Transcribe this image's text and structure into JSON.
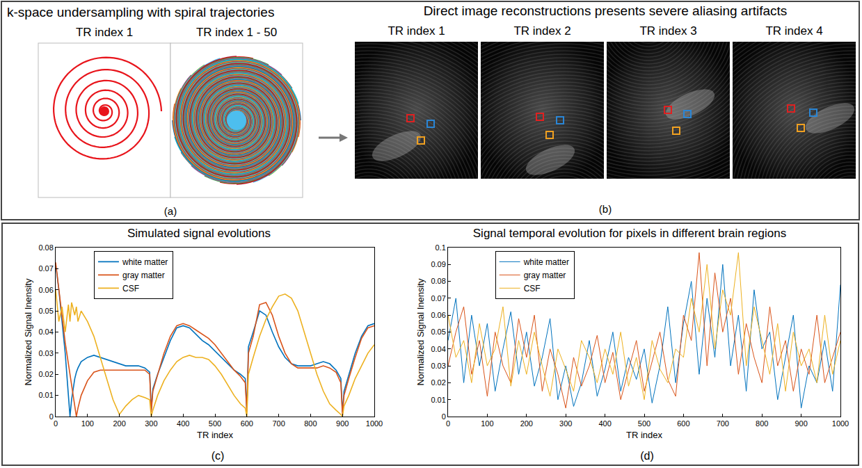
{
  "figure": {
    "a": {
      "title": "k-space undersampling with spiral trajectories",
      "labels": [
        "TR index 1",
        "TR index 1 - 50"
      ],
      "letter": "(a)"
    },
    "b": {
      "title": "Direct image reconstructions presents severe aliasing artifacts",
      "labels": [
        "TR index 1",
        "TR index 2",
        "TR index 3",
        "TR index 4"
      ],
      "letter": "(b)"
    }
  },
  "chart_data": [
    {
      "type": "line",
      "title": "Simulated signal evolutions",
      "xlabel": "TR index",
      "ylabel": "Normalized Signal Inensity",
      "x": [
        0,
        10,
        20,
        30,
        40,
        45,
        50,
        60,
        65,
        70,
        80,
        100,
        120,
        140,
        160,
        180,
        200,
        220,
        240,
        260,
        280,
        295,
        300,
        305,
        320,
        340,
        360,
        380,
        400,
        420,
        440,
        460,
        480,
        500,
        520,
        540,
        560,
        580,
        595,
        600,
        605,
        620,
        640,
        660,
        680,
        700,
        720,
        740,
        760,
        780,
        800,
        820,
        840,
        860,
        880,
        895,
        900,
        905,
        920,
        940,
        960,
        980,
        1000
      ],
      "series": [
        {
          "name": "white matter",
          "color": "#0072bd",
          "values": [
            0.072,
            0.06,
            0.045,
            0.03,
            0.01,
            0.0,
            0.008,
            0.018,
            0.021,
            0.023,
            0.026,
            0.028,
            0.029,
            0.028,
            0.027,
            0.026,
            0.025,
            0.024,
            0.024,
            0.024,
            0.023,
            0.021,
            0.003,
            0.013,
            0.02,
            0.028,
            0.036,
            0.042,
            0.043,
            0.042,
            0.039,
            0.036,
            0.034,
            0.031,
            0.028,
            0.025,
            0.022,
            0.02,
            0.018,
            0.003,
            0.033,
            0.04,
            0.05,
            0.048,
            0.04,
            0.033,
            0.028,
            0.025,
            0.024,
            0.024,
            0.024,
            0.025,
            0.026,
            0.025,
            0.022,
            0.018,
            0.002,
            0.012,
            0.02,
            0.03,
            0.038,
            0.043,
            0.044
          ]
        },
        {
          "name": "gray matter",
          "color": "#d95319",
          "values": [
            0.073,
            0.06,
            0.047,
            0.035,
            0.025,
            0.02,
            0.015,
            0.005,
            0.0,
            0.004,
            0.01,
            0.017,
            0.021,
            0.022,
            0.022,
            0.022,
            0.022,
            0.022,
            0.022,
            0.022,
            0.022,
            0.02,
            0.002,
            0.012,
            0.02,
            0.03,
            0.038,
            0.043,
            0.044,
            0.043,
            0.041,
            0.039,
            0.037,
            0.034,
            0.03,
            0.026,
            0.022,
            0.019,
            0.016,
            0.002,
            0.03,
            0.038,
            0.053,
            0.054,
            0.048,
            0.038,
            0.03,
            0.025,
            0.023,
            0.023,
            0.023,
            0.023,
            0.024,
            0.023,
            0.021,
            0.016,
            0.001,
            0.01,
            0.018,
            0.028,
            0.037,
            0.042,
            0.043
          ]
        },
        {
          "name": "CSF",
          "color": "#edb120",
          "values": [
            0.06,
            0.045,
            0.052,
            0.04,
            0.053,
            0.045,
            0.054,
            0.048,
            0.052,
            0.045,
            0.05,
            0.045,
            0.038,
            0.028,
            0.018,
            0.008,
            0.001,
            0.005,
            0.008,
            0.01,
            0.009,
            0.008,
            0.0,
            0.003,
            0.01,
            0.017,
            0.022,
            0.026,
            0.028,
            0.029,
            0.028,
            0.028,
            0.027,
            0.024,
            0.02,
            0.015,
            0.01,
            0.006,
            0.004,
            0.0,
            0.02,
            0.028,
            0.038,
            0.046,
            0.052,
            0.057,
            0.058,
            0.056,
            0.05,
            0.04,
            0.03,
            0.02,
            0.012,
            0.006,
            0.003,
            0.001,
            0.0,
            0.005,
            0.01,
            0.018,
            0.024,
            0.03,
            0.034
          ]
        }
      ],
      "xlim": [
        0,
        1000
      ],
      "ylim": [
        0,
        0.08
      ],
      "xticks": [
        0,
        100,
        200,
        300,
        400,
        500,
        600,
        700,
        800,
        900,
        1000
      ],
      "yticks": [
        0,
        0.01,
        0.02,
        0.03,
        0.04,
        0.05,
        0.06,
        0.07,
        0.08
      ],
      "legend": "upper left",
      "grid": false,
      "annotations": [
        "(c)"
      ]
    },
    {
      "type": "line",
      "title": "Signal temporal evolution for pixels in different brain regions",
      "xlabel": "TR index",
      "ylabel": "Normalized Signal Inensity",
      "x": [
        0,
        20,
        40,
        60,
        80,
        100,
        120,
        140,
        160,
        180,
        200,
        220,
        240,
        260,
        280,
        300,
        320,
        340,
        360,
        380,
        400,
        420,
        440,
        460,
        480,
        500,
        520,
        540,
        560,
        580,
        600,
        620,
        640,
        660,
        680,
        700,
        720,
        740,
        760,
        780,
        800,
        820,
        840,
        860,
        880,
        900,
        920,
        940,
        960,
        980,
        1000
      ],
      "series": [
        {
          "name": "white matter",
          "color": "#0072bd",
          "values": [
            0.045,
            0.07,
            0.02,
            0.06,
            0.03,
            0.055,
            0.015,
            0.04,
            0.062,
            0.025,
            0.05,
            0.018,
            0.035,
            0.058,
            0.01,
            0.03,
            0.006,
            0.02,
            0.045,
            0.012,
            0.028,
            0.05,
            0.015,
            0.035,
            0.022,
            0.04,
            0.008,
            0.03,
            0.065,
            0.02,
            0.055,
            0.08,
            0.025,
            0.07,
            0.035,
            0.09,
            0.03,
            0.06,
            0.015,
            0.075,
            0.04,
            0.05,
            0.01,
            0.035,
            0.06,
            0.005,
            0.03,
            0.02,
            0.045,
            0.015,
            0.078
          ]
        },
        {
          "name": "gray matter",
          "color": "#d95319",
          "values": [
            0.03,
            0.05,
            0.065,
            0.025,
            0.045,
            0.012,
            0.05,
            0.03,
            0.02,
            0.058,
            0.035,
            0.06,
            0.015,
            0.04,
            0.025,
            0.005,
            0.035,
            0.018,
            0.03,
            0.048,
            0.02,
            0.038,
            0.01,
            0.028,
            0.045,
            0.015,
            0.032,
            0.05,
            0.022,
            0.012,
            0.06,
            0.045,
            0.097,
            0.03,
            0.085,
            0.05,
            0.07,
            0.025,
            0.055,
            0.035,
            0.02,
            0.065,
            0.03,
            0.045,
            0.015,
            0.04,
            0.025,
            0.06,
            0.02,
            0.035,
            0.05
          ]
        },
        {
          "name": "CSF",
          "color": "#edb120",
          "values": [
            0.06,
            0.035,
            0.045,
            0.02,
            0.055,
            0.03,
            0.04,
            0.065,
            0.018,
            0.045,
            0.025,
            0.05,
            0.03,
            0.012,
            0.04,
            0.028,
            0.015,
            0.045,
            0.035,
            0.02,
            0.04,
            0.025,
            0.05,
            0.018,
            0.035,
            0.01,
            0.045,
            0.028,
            0.02,
            0.04,
            0.035,
            0.07,
            0.05,
            0.09,
            0.04,
            0.075,
            0.06,
            0.097,
            0.03,
            0.065,
            0.045,
            0.025,
            0.055,
            0.015,
            0.05,
            0.03,
            0.04,
            0.02,
            0.06,
            0.025,
            0.045
          ]
        }
      ],
      "xlim": [
        0,
        1000
      ],
      "ylim": [
        0,
        0.1
      ],
      "xticks": [
        0,
        100,
        200,
        300,
        400,
        500,
        600,
        700,
        800,
        900,
        1000
      ],
      "yticks": [
        0,
        0.01,
        0.02,
        0.03,
        0.04,
        0.05,
        0.06,
        0.07,
        0.08,
        0.09,
        0.1
      ],
      "legend": "upper left",
      "grid": false,
      "annotations": [
        "(d)"
      ]
    }
  ]
}
